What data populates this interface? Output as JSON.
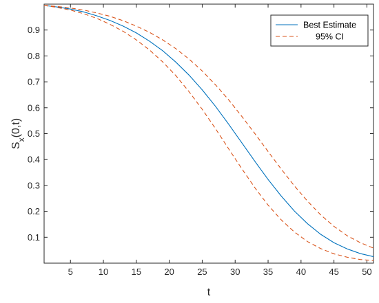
{
  "chart_data": {
    "type": "line",
    "xlabel": "t",
    "ylabel": "S",
    "ylabel_sub": "x",
    "ylabel_tail": "(0,t)",
    "xlim": [
      1,
      51
    ],
    "ylim": [
      0,
      1
    ],
    "xticks": [
      5,
      10,
      15,
      20,
      25,
      30,
      35,
      40,
      45,
      50
    ],
    "yticks": [
      0.1,
      0.2,
      0.3,
      0.4,
      0.5,
      0.6,
      0.7,
      0.8,
      0.9
    ],
    "grid": false,
    "legend_position": "top-right",
    "legend": [
      {
        "label": "Best Estimate",
        "color": "#0072bd",
        "dash": "solid"
      },
      {
        "label": "95% CI",
        "color": "#d95319",
        "dash": "dashed"
      }
    ],
    "x": [
      1,
      3,
      5,
      7,
      9,
      11,
      13,
      15,
      17,
      19,
      21,
      23,
      25,
      27,
      29,
      31,
      33,
      35,
      37,
      39,
      41,
      43,
      45,
      47,
      49,
      51
    ],
    "series": [
      {
        "name": "Best Estimate",
        "color": "#0072bd",
        "dash": "solid",
        "values": [
          0.995,
          0.989,
          0.981,
          0.97,
          0.955,
          0.937,
          0.915,
          0.889,
          0.857,
          0.82,
          0.776,
          0.726,
          0.669,
          0.606,
          0.537,
          0.465,
          0.393,
          0.323,
          0.259,
          0.201,
          0.152,
          0.111,
          0.079,
          0.055,
          0.037,
          0.025
        ]
      },
      {
        "name": "95% CI",
        "color": "#d95319",
        "dash": "dashed",
        "values": [
          0.995,
          0.991,
          0.985,
          0.977,
          0.966,
          0.953,
          0.936,
          0.915,
          0.891,
          0.862,
          0.828,
          0.788,
          0.742,
          0.689,
          0.631,
          0.567,
          0.5,
          0.431,
          0.363,
          0.298,
          0.239,
          0.186,
          0.142,
          0.106,
          0.079,
          0.058
        ]
      },
      {
        "name": "95% CI",
        "color": "#d95319",
        "dash": "dashed",
        "values": [
          0.995,
          0.987,
          0.977,
          0.963,
          0.945,
          0.922,
          0.895,
          0.862,
          0.823,
          0.777,
          0.724,
          0.662,
          0.594,
          0.52,
          0.442,
          0.365,
          0.291,
          0.224,
          0.167,
          0.12,
          0.083,
          0.056,
          0.036,
          0.023,
          0.014,
          0.01
        ]
      }
    ]
  }
}
